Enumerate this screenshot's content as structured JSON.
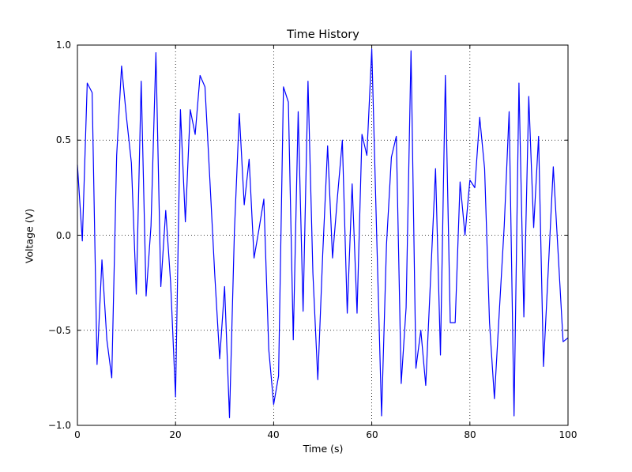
{
  "figure": {
    "title": "Time History",
    "xlabel": "Time (s)",
    "ylabel": "Voltage (V)"
  },
  "chart_data": {
    "type": "line",
    "title": "Time History",
    "xlabel": "Time (s)",
    "ylabel": "Voltage (V)",
    "xlim": [
      0,
      100
    ],
    "ylim": [
      -1.0,
      1.0
    ],
    "xticks": [
      0,
      20,
      40,
      60,
      80,
      100
    ],
    "yticks": [
      1.0,
      0.5,
      0.0,
      -0.5,
      -1.0
    ],
    "xtick_labels": [
      "0",
      "20",
      "40",
      "60",
      "80",
      "100"
    ],
    "ytick_labels": [
      "1.0",
      "0.5",
      "0.0",
      "−0.5",
      "−1.0"
    ],
    "grid": "dotted",
    "legend": "none",
    "line_color": "#0000ff",
    "x": [
      0,
      1,
      2,
      3,
      4,
      5,
      6,
      7,
      8,
      9,
      10,
      11,
      12,
      13,
      14,
      15,
      16,
      17,
      18,
      19,
      20,
      21,
      22,
      23,
      24,
      25,
      26,
      27,
      28,
      29,
      30,
      31,
      32,
      33,
      34,
      35,
      36,
      37,
      38,
      39,
      40,
      41,
      42,
      43,
      44,
      45,
      46,
      47,
      48,
      49,
      50,
      51,
      52,
      53,
      54,
      55,
      56,
      57,
      58,
      59,
      60,
      61,
      62,
      63,
      64,
      65,
      66,
      67,
      68,
      69,
      70,
      71,
      72,
      73,
      74,
      75,
      76,
      77,
      78,
      79,
      80,
      81,
      82,
      83,
      84,
      85,
      86,
      87,
      88,
      89,
      90,
      91,
      92,
      93,
      94,
      95,
      96,
      97,
      98,
      99,
      100
    ],
    "y": [
      0.37,
      -0.03,
      0.8,
      0.75,
      -0.68,
      -0.13,
      -0.55,
      -0.75,
      0.42,
      0.89,
      0.62,
      0.38,
      -0.31,
      0.81,
      -0.32,
      0.05,
      0.96,
      -0.27,
      0.13,
      -0.25,
      -0.85,
      0.66,
      0.07,
      0.66,
      0.53,
      0.84,
      0.78,
      0.29,
      -0.21,
      -0.65,
      -0.27,
      -0.96,
      0.02,
      0.64,
      0.16,
      0.4,
      -0.12,
      0.03,
      0.19,
      -0.6,
      -0.89,
      -0.74,
      0.78,
      0.7,
      -0.55,
      0.65,
      -0.4,
      0.81,
      -0.2,
      -0.76,
      -0.1,
      0.47,
      -0.12,
      0.2,
      0.5,
      -0.41,
      0.27,
      -0.41,
      0.53,
      0.42,
      0.98,
      0.0,
      -0.95,
      -0.05,
      0.41,
      0.52,
      -0.78,
      -0.38,
      0.97,
      -0.7,
      -0.5,
      -0.79,
      -0.22,
      0.35,
      -0.63,
      0.84,
      -0.46,
      -0.46,
      0.28,
      0.0,
      0.29,
      0.25,
      0.62,
      0.35,
      -0.46,
      -0.86,
      -0.4,
      0.05,
      0.65,
      -0.95,
      0.8,
      -0.43,
      0.73,
      0.04,
      0.52,
      -0.69,
      -0.17,
      0.36,
      -0.1,
      -0.56,
      -0.54
    ]
  },
  "colors": {
    "line": "#0000ff",
    "axes": "#000000",
    "background": "#ffffff"
  }
}
